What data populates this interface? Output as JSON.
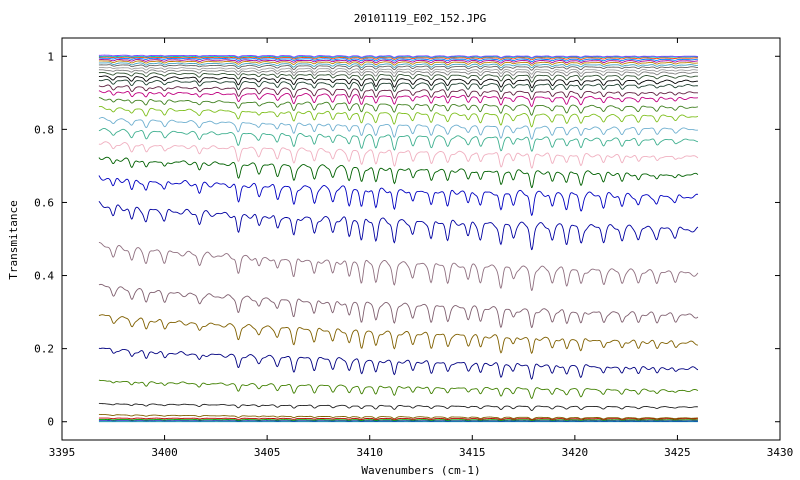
{
  "chart_data": {
    "type": "line",
    "title": "20101119_E02_152.JPG",
    "xlabel": "Wavenumbers (cm-1)",
    "ylabel": "Transmitance",
    "xlim": [
      3395,
      3430
    ],
    "ylim": [
      -0.05,
      1.05
    ],
    "x_start": 3396.8,
    "x_end": 3426.0,
    "x_ticks": [
      3395,
      3400,
      3405,
      3410,
      3415,
      3420,
      3425,
      3430
    ],
    "x_tick_labels": [
      "3395",
      "3400",
      "3405",
      "3410",
      "3415",
      "3420",
      "3425",
      "3430"
    ],
    "y_ticks": [
      0,
      0.2,
      0.4,
      0.6,
      0.8,
      1
    ],
    "y_tick_labels": [
      "0",
      "0.2",
      "0.4",
      "0.6",
      "0.8",
      "1"
    ],
    "grid": false,
    "legend": "none",
    "absorption_lines": [
      {
        "x": 3397.5,
        "depth": 0.35
      },
      {
        "x": 3398.4,
        "depth": 0.45
      },
      {
        "x": 3399.1,
        "depth": 0.5
      },
      {
        "x": 3400.0,
        "depth": 0.4
      },
      {
        "x": 3401.7,
        "depth": 0.45
      },
      {
        "x": 3403.6,
        "depth": 0.8
      },
      {
        "x": 3404.6,
        "depth": 0.45
      },
      {
        "x": 3405.5,
        "depth": 0.55
      },
      {
        "x": 3406.3,
        "depth": 0.85
      },
      {
        "x": 3407.3,
        "depth": 0.7
      },
      {
        "x": 3408.2,
        "depth": 0.6
      },
      {
        "x": 3409.0,
        "depth": 0.7
      },
      {
        "x": 3409.6,
        "depth": 0.9
      },
      {
        "x": 3410.3,
        "depth": 0.85
      },
      {
        "x": 3411.2,
        "depth": 0.95
      },
      {
        "x": 3412.1,
        "depth": 0.6
      },
      {
        "x": 3413.0,
        "depth": 0.75
      },
      {
        "x": 3413.8,
        "depth": 0.7
      },
      {
        "x": 3414.8,
        "depth": 0.55
      },
      {
        "x": 3415.4,
        "depth": 0.65
      },
      {
        "x": 3416.4,
        "depth": 0.9
      },
      {
        "x": 3417.0,
        "depth": 0.5
      },
      {
        "x": 3417.9,
        "depth": 1.0
      },
      {
        "x": 3418.9,
        "depth": 0.6
      },
      {
        "x": 3419.6,
        "depth": 0.65
      },
      {
        "x": 3420.3,
        "depth": 0.7
      },
      {
        "x": 3421.4,
        "depth": 0.55
      },
      {
        "x": 3422.3,
        "depth": 0.5
      },
      {
        "x": 3423.1,
        "depth": 0.45
      },
      {
        "x": 3424.0,
        "depth": 0.4
      },
      {
        "x": 3424.9,
        "depth": 0.3
      }
    ],
    "series": [
      {
        "start": 0.0,
        "end": 0.0,
        "depth": 0.0,
        "color": "#00a0a0"
      },
      {
        "start": 0.003,
        "end": 0.002,
        "depth": 0.001,
        "color": "#2020c0"
      },
      {
        "start": 0.006,
        "end": 0.005,
        "depth": 0.002,
        "color": "#00a000"
      },
      {
        "start": 0.01,
        "end": 0.008,
        "depth": 0.003,
        "color": "#c00000"
      },
      {
        "start": 0.02,
        "end": 0.01,
        "depth": 0.005,
        "color": "#806000"
      },
      {
        "start": 0.05,
        "end": 0.04,
        "depth": 0.01,
        "color": "#202020"
      },
      {
        "start": 0.115,
        "end": 0.085,
        "depth": 0.025,
        "color": "#408000"
      },
      {
        "start": 0.205,
        "end": 0.145,
        "depth": 0.04,
        "color": "#000080"
      },
      {
        "start": 0.295,
        "end": 0.215,
        "depth": 0.045,
        "color": "#806000"
      },
      {
        "start": 0.375,
        "end": 0.29,
        "depth": 0.05,
        "color": "#806070"
      },
      {
        "start": 0.485,
        "end": 0.405,
        "depth": 0.06,
        "color": "#907080"
      },
      {
        "start": 0.595,
        "end": 0.525,
        "depth": 0.065,
        "color": "#0000a0"
      },
      {
        "start": 0.67,
        "end": 0.615,
        "depth": 0.06,
        "color": "#0000c0"
      },
      {
        "start": 0.725,
        "end": 0.675,
        "depth": 0.045,
        "color": "#006000"
      },
      {
        "start": 0.765,
        "end": 0.725,
        "depth": 0.04,
        "color": "#f0b0c0"
      },
      {
        "start": 0.8,
        "end": 0.77,
        "depth": 0.035,
        "color": "#40b090"
      },
      {
        "start": 0.83,
        "end": 0.8,
        "depth": 0.03,
        "color": "#70b0d0"
      },
      {
        "start": 0.86,
        "end": 0.835,
        "depth": 0.03,
        "color": "#80c020"
      },
      {
        "start": 0.885,
        "end": 0.86,
        "depth": 0.025,
        "color": "#408020"
      },
      {
        "start": 0.905,
        "end": 0.885,
        "depth": 0.028,
        "color": "#c00080"
      },
      {
        "start": 0.92,
        "end": 0.9,
        "depth": 0.025,
        "color": "#602040"
      },
      {
        "start": 0.935,
        "end": 0.92,
        "depth": 0.022,
        "color": "#204030"
      },
      {
        "start": 0.945,
        "end": 0.932,
        "depth": 0.02,
        "color": "#000000"
      },
      {
        "start": 0.955,
        "end": 0.945,
        "depth": 0.016,
        "color": "#305030"
      },
      {
        "start": 0.963,
        "end": 0.955,
        "depth": 0.014,
        "color": "#808080"
      },
      {
        "start": 0.97,
        "end": 0.962,
        "depth": 0.012,
        "color": "#a0a0a0"
      },
      {
        "start": 0.977,
        "end": 0.97,
        "depth": 0.01,
        "color": "#606060"
      },
      {
        "start": 0.982,
        "end": 0.976,
        "depth": 0.009,
        "color": "#40a0c0"
      },
      {
        "start": 0.987,
        "end": 0.982,
        "depth": 0.008,
        "color": "#c08000"
      },
      {
        "start": 0.991,
        "end": 0.987,
        "depth": 0.007,
        "color": "#a000a0"
      },
      {
        "start": 0.995,
        "end": 0.991,
        "depth": 0.006,
        "color": "#0080ff"
      },
      {
        "start": 0.998,
        "end": 0.995,
        "depth": 0.005,
        "color": "#ff4000"
      },
      {
        "start": 1.0,
        "end": 0.998,
        "depth": 0.004,
        "color": "#00c0c0"
      },
      {
        "start": 1.003,
        "end": 1.0,
        "depth": 0.004,
        "color": "#8040ff"
      }
    ]
  }
}
